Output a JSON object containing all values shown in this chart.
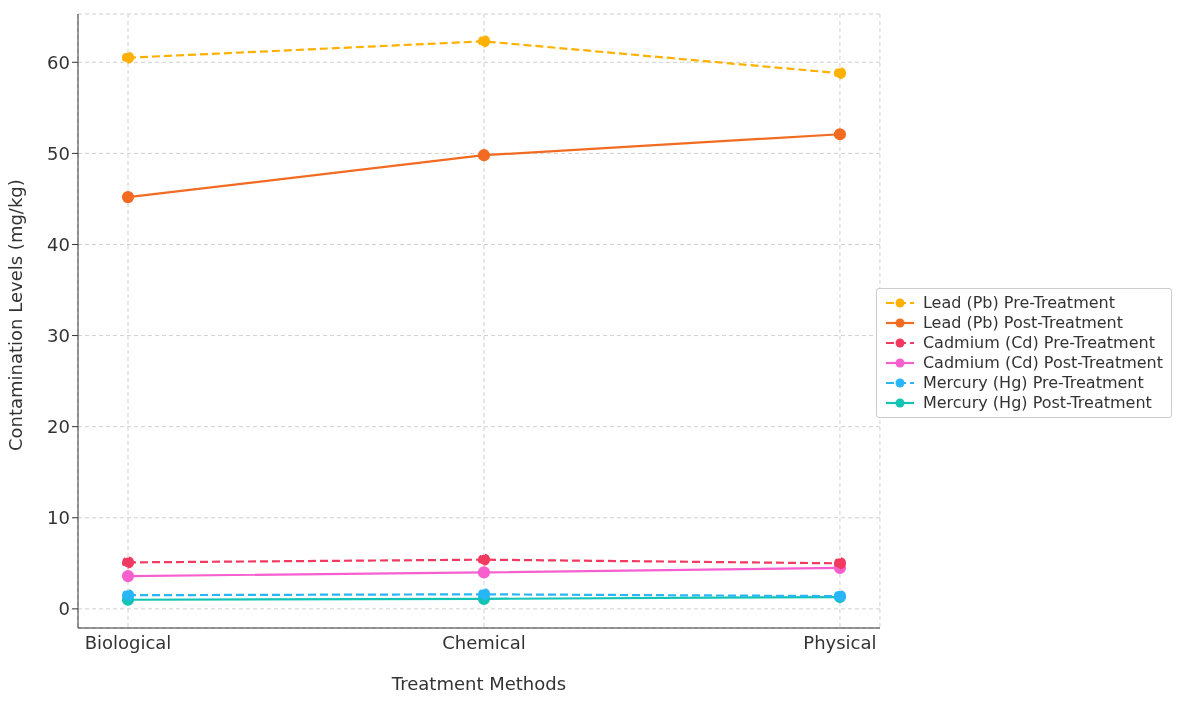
{
  "chart_data": {
    "type": "line",
    "xlabel": "Treatment Methods",
    "ylabel": "Contamination Levels (mg/kg)",
    "categories": [
      "Biological",
      "Chemical",
      "Physical"
    ],
    "series": [
      {
        "name": "Lead (Pb) Pre-Treatment",
        "color": "#ffb000",
        "line_style": "dashed",
        "values": [
          60.5,
          62.3,
          58.8
        ]
      },
      {
        "name": "Lead (Pb) Post-Treatment",
        "color": "#f26b21",
        "line_style": "solid",
        "values": [
          45.2,
          49.8,
          52.1
        ]
      },
      {
        "name": "Cadmium (Cd) Pre-Treatment",
        "color": "#f03a5f",
        "line_style": "dashed",
        "values": [
          5.1,
          5.4,
          5.0
        ]
      },
      {
        "name": "Cadmium (Cd) Post-Treatment",
        "color": "#f75fcf",
        "line_style": "solid",
        "values": [
          3.6,
          4.0,
          4.5
        ]
      },
      {
        "name": "Mercury (Hg) Pre-Treatment",
        "color": "#29b6f6",
        "line_style": "dashed",
        "values": [
          1.5,
          1.6,
          1.4
        ]
      },
      {
        "name": "Mercury (Hg) Post-Treatment",
        "color": "#13c4b4",
        "line_style": "solid",
        "values": [
          1.0,
          1.1,
          1.3
        ]
      }
    ],
    "ylim": [
      -2.1,
      65.3
    ],
    "yticks": [
      0,
      10,
      20,
      30,
      40,
      50,
      60
    ],
    "grid": true,
    "legend": "right",
    "marker": "circle"
  }
}
